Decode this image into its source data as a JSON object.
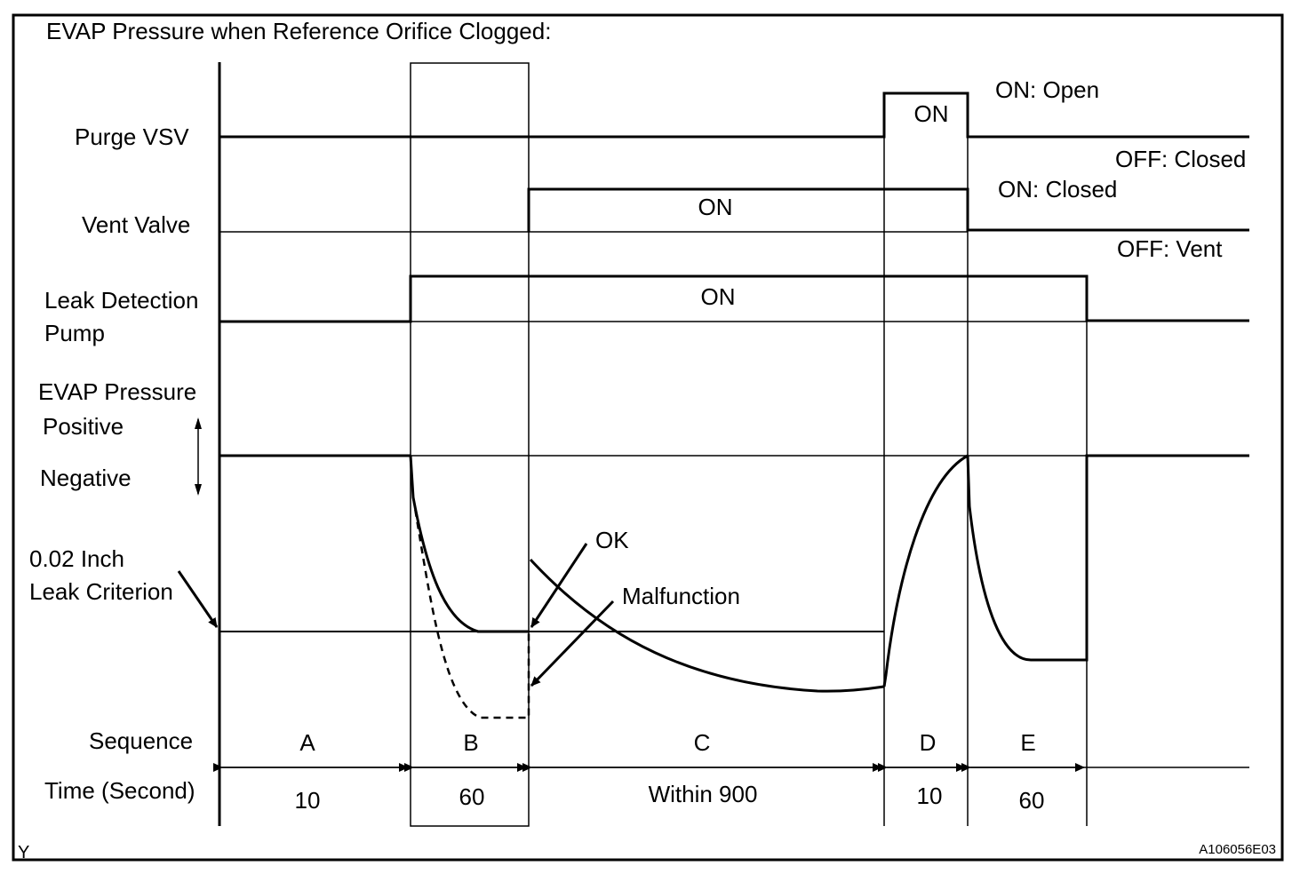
{
  "title": "EVAP Pressure when Reference Orifice Clogged:",
  "row_labels": {
    "purge_vsv": "Purge VSV",
    "vent_valve": "Vent Valve",
    "leak_pump_line1": "Leak Detection",
    "leak_pump_line2": "Pump",
    "evap_pressure": "EVAP Pressure",
    "positive": "Positive",
    "negative": "Negative",
    "criterion_line1": "0.02 Inch",
    "criterion_line2": "Leak Criterion",
    "sequence": "Sequence",
    "time": "Time (Second)"
  },
  "state_labels": {
    "purge_on": "ON",
    "purge_on_meaning": "ON: Open",
    "purge_off_meaning": "OFF: Closed",
    "vent_on": "ON",
    "vent_on_meaning": "ON: Closed",
    "vent_off_meaning": "OFF: Vent",
    "pump_on": "ON"
  },
  "annotations": {
    "ok": "OK",
    "malfunction": "Malfunction"
  },
  "sequence": [
    {
      "label": "A",
      "time": "10"
    },
    {
      "label": "B",
      "time": "60"
    },
    {
      "label": "C",
      "time": "Within 900"
    },
    {
      "label": "D",
      "time": "10"
    },
    {
      "label": "E",
      "time": "60"
    }
  ],
  "corner_mark": "Y",
  "figure_code": "A106056E03"
}
